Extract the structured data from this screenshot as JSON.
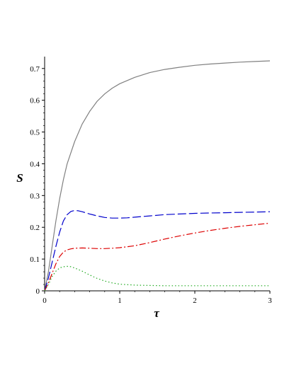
{
  "chart_data": {
    "type": "line",
    "title": "",
    "xlabel": "τ",
    "ylabel": "S",
    "xlim": [
      0,
      3
    ],
    "ylim": [
      0,
      0.72
    ],
    "xticks": [
      0,
      1,
      2,
      3
    ],
    "xtick_labels": [
      "0",
      "1",
      "2",
      "3"
    ],
    "yticks": [
      0,
      0.1,
      0.2,
      0.3,
      0.4,
      0.5,
      0.6,
      0.7
    ],
    "ytick_labels": [
      "0",
      "0.1",
      "0.2",
      "0.3",
      "0.4",
      "0.5",
      "0.6",
      "0.7"
    ],
    "grid": false,
    "legend": "none",
    "series": [
      {
        "style": "solid",
        "color": "#808080",
        "x": [
          0,
          0.05,
          0.1,
          0.15,
          0.2,
          0.25,
          0.3,
          0.4,
          0.5,
          0.6,
          0.7,
          0.8,
          0.9,
          1.0,
          1.2,
          1.4,
          1.6,
          1.8,
          2.0,
          2.2,
          2.4,
          2.6,
          2.8,
          3.0
        ],
        "y": [
          0,
          0.06,
          0.14,
          0.22,
          0.29,
          0.35,
          0.4,
          0.47,
          0.525,
          0.565,
          0.597,
          0.62,
          0.638,
          0.652,
          0.672,
          0.687,
          0.697,
          0.704,
          0.71,
          0.714,
          0.717,
          0.72,
          0.722,
          0.724
        ]
      },
      {
        "style": "dash",
        "color": "#0000cc",
        "x": [
          0,
          0.05,
          0.1,
          0.15,
          0.2,
          0.25,
          0.3,
          0.35,
          0.4,
          0.45,
          0.5,
          0.6,
          0.7,
          0.8,
          0.9,
          1.0,
          1.1,
          1.2,
          1.4,
          1.6,
          1.8,
          2.0,
          2.2,
          2.4,
          2.6,
          2.8,
          3.0
        ],
        "y": [
          0,
          0.04,
          0.09,
          0.14,
          0.185,
          0.22,
          0.24,
          0.25,
          0.253,
          0.252,
          0.249,
          0.242,
          0.236,
          0.231,
          0.229,
          0.229,
          0.23,
          0.232,
          0.236,
          0.24,
          0.242,
          0.244,
          0.245,
          0.246,
          0.247,
          0.248,
          0.249
        ]
      },
      {
        "style": "dashdot",
        "color": "#dd0000",
        "x": [
          0,
          0.05,
          0.1,
          0.15,
          0.2,
          0.25,
          0.3,
          0.35,
          0.4,
          0.5,
          0.6,
          0.7,
          0.8,
          0.9,
          1.0,
          1.2,
          1.4,
          1.6,
          1.8,
          2.0,
          2.2,
          2.4,
          2.6,
          2.8,
          3.0
        ],
        "y": [
          0,
          0.025,
          0.055,
          0.085,
          0.108,
          0.122,
          0.129,
          0.132,
          0.134,
          0.135,
          0.134,
          0.133,
          0.133,
          0.134,
          0.136,
          0.142,
          0.152,
          0.163,
          0.173,
          0.182,
          0.19,
          0.197,
          0.203,
          0.208,
          0.213
        ]
      },
      {
        "style": "dot",
        "color": "#22aa22",
        "x": [
          0,
          0.05,
          0.1,
          0.15,
          0.2,
          0.25,
          0.3,
          0.35,
          0.4,
          0.5,
          0.6,
          0.7,
          0.8,
          0.9,
          1.0,
          1.2,
          1.4,
          1.6,
          1.8,
          2.0,
          2.5,
          3.0
        ],
        "y": [
          0,
          0.02,
          0.045,
          0.062,
          0.072,
          0.076,
          0.077,
          0.076,
          0.072,
          0.062,
          0.05,
          0.039,
          0.031,
          0.025,
          0.021,
          0.018,
          0.017,
          0.016,
          0.016,
          0.016,
          0.016,
          0.016
        ]
      }
    ]
  }
}
